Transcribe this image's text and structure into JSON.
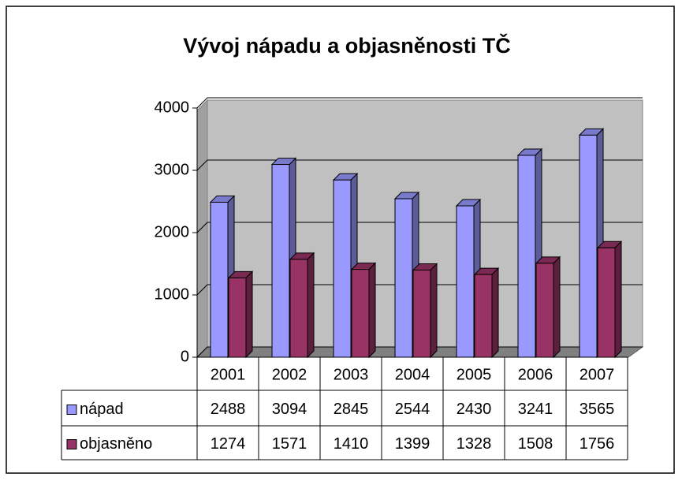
{
  "chart_data": {
    "type": "bar",
    "title": "Vývoj nápadu a objasněnosti TČ",
    "categories": [
      "2001",
      "2002",
      "2003",
      "2004",
      "2005",
      "2006",
      "2007"
    ],
    "series": [
      {
        "name": "nápad",
        "color": "#9999ff",
        "values": [
          2488,
          3094,
          2845,
          2544,
          2430,
          3241,
          3565
        ]
      },
      {
        "name": "objasněno",
        "color": "#993366",
        "values": [
          1274,
          1571,
          1410,
          1399,
          1328,
          1508,
          1756
        ]
      }
    ],
    "ylim": [
      0,
      4000
    ],
    "yticks": [
      0,
      1000,
      2000,
      3000,
      4000
    ],
    "grid": true
  }
}
